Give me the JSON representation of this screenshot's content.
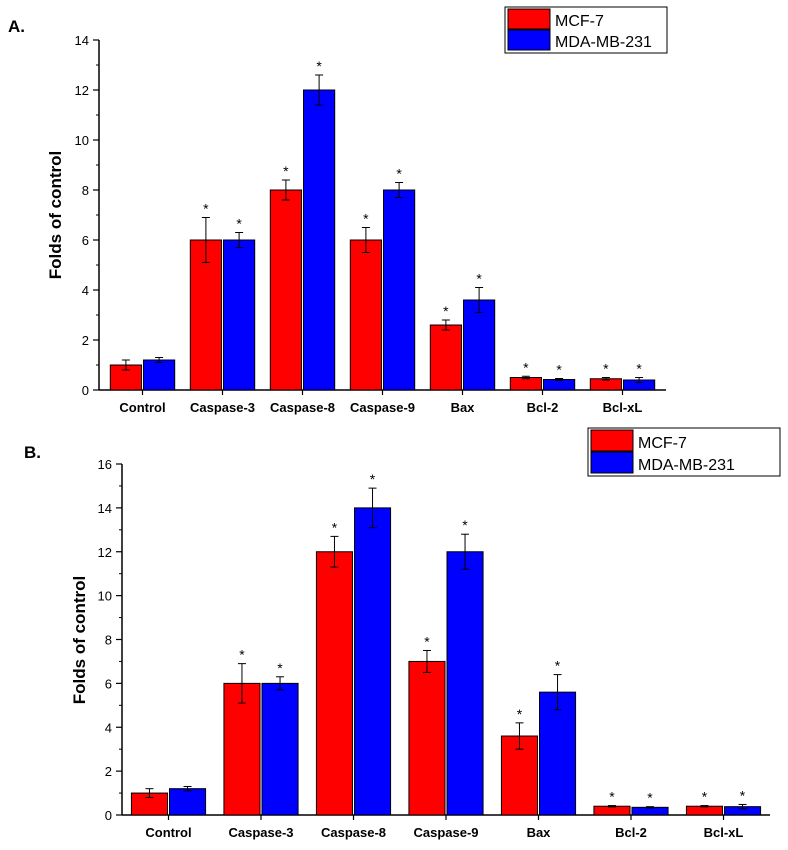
{
  "colors": {
    "mcf7": "#ff0000",
    "mda": "#0000ff",
    "axis": "#000000"
  },
  "chart_data": [
    {
      "type": "bar",
      "panel": "A.",
      "title": "",
      "xlabel": "",
      "ylabel": "Folds of control",
      "ylim": [
        0,
        14
      ],
      "yticks": [
        0,
        2,
        4,
        6,
        8,
        10,
        12,
        14
      ],
      "legend_position": "top-right",
      "categories": [
        "Control",
        "Caspase-3",
        "Caspase-8",
        "Caspase-9",
        "Bax",
        "Bcl-2",
        "Bcl-xL"
      ],
      "series": [
        {
          "name": "MCF-7",
          "color": "#ff0000",
          "values": [
            1.0,
            6.0,
            8.0,
            6.0,
            2.6,
            0.5,
            0.45
          ],
          "errors": [
            0.2,
            0.9,
            0.4,
            0.5,
            0.2,
            0.05,
            0.05
          ],
          "significant": [
            false,
            true,
            true,
            true,
            true,
            true,
            true
          ]
        },
        {
          "name": "MDA-MB-231",
          "color": "#0000ff",
          "values": [
            1.2,
            6.0,
            12.0,
            8.0,
            3.6,
            0.42,
            0.4
          ],
          "errors": [
            0.1,
            0.3,
            0.6,
            0.3,
            0.5,
            0.04,
            0.1
          ],
          "significant": [
            false,
            true,
            true,
            true,
            true,
            true,
            true
          ]
        }
      ],
      "significance_marker": "*"
    },
    {
      "type": "bar",
      "panel": "B.",
      "title": "",
      "xlabel": "",
      "ylabel": "Folds of control",
      "ylim": [
        0,
        16
      ],
      "yticks": [
        0,
        2,
        4,
        6,
        8,
        10,
        12,
        14,
        16
      ],
      "legend_position": "top-right",
      "categories": [
        "Control",
        "Caspase-3",
        "Caspase-8",
        "Caspase-9",
        "Bax",
        "Bcl-2",
        "Bcl-xL"
      ],
      "series": [
        {
          "name": "MCF-7",
          "color": "#ff0000",
          "values": [
            1.0,
            6.0,
            12.0,
            7.0,
            3.6,
            0.4,
            0.4
          ],
          "errors": [
            0.2,
            0.9,
            0.7,
            0.5,
            0.6,
            0.03,
            0.03
          ],
          "significant": [
            false,
            true,
            true,
            true,
            true,
            true,
            true
          ]
        },
        {
          "name": "MDA-MB-231",
          "color": "#0000ff",
          "values": [
            1.2,
            6.0,
            14.0,
            12.0,
            5.6,
            0.35,
            0.38
          ],
          "errors": [
            0.1,
            0.3,
            0.9,
            0.8,
            0.8,
            0.03,
            0.1
          ],
          "significant": [
            false,
            true,
            true,
            true,
            true,
            true,
            true
          ]
        }
      ],
      "significance_marker": "*"
    }
  ]
}
